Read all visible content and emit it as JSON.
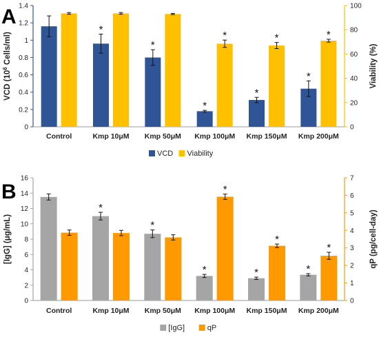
{
  "chart_data": [
    {
      "type": "bar",
      "panel_label": "A",
      "categories": [
        "Control",
        "Kmp 10μM",
        "Kmp 50μM",
        "Kmp 100μM",
        "Kmp 150μM",
        "Kmp 200μM"
      ],
      "series": [
        {
          "name": "VCD",
          "axis": "left",
          "color": "#2F5597",
          "values": [
            1.16,
            0.96,
            0.8,
            0.18,
            0.31,
            0.44
          ],
          "errors": [
            0.12,
            0.11,
            0.09,
            0.01,
            0.03,
            0.09
          ],
          "significant": [
            false,
            true,
            true,
            true,
            true,
            true
          ]
        },
        {
          "name": "Viability",
          "axis": "right",
          "color": "#FFC000",
          "values": [
            93.5,
            93.5,
            93.0,
            68.5,
            67.0,
            71.0
          ],
          "errors": [
            0.7,
            0.7,
            0.5,
            3.0,
            2.5,
            1.2
          ],
          "significant": [
            false,
            false,
            false,
            true,
            true,
            true
          ]
        }
      ],
      "ylabel": "VCD (10",
      "ylabel_sup": "6",
      "ylabel_end": " Cells/ml)",
      "ylim": [
        0,
        1.4
      ],
      "yticks": [
        0,
        0.2,
        0.4,
        0.6,
        0.8,
        1,
        1.2,
        1.4
      ],
      "y2label": "Viability (%)",
      "y2lim": [
        0,
        100
      ],
      "y2ticks": [
        0,
        20,
        40,
        60,
        80,
        100
      ],
      "significance_marker": "*",
      "legend_position": "bottom-center",
      "grid": false
    },
    {
      "type": "bar",
      "panel_label": "B",
      "categories": [
        "Control",
        "Kmp 10μM",
        "Kmp 50μM",
        "Kmp 100μM",
        "Kmp 150μM",
        "Kmp 200μM"
      ],
      "series": [
        {
          "name": "[IgG]",
          "axis": "left",
          "color": "#A5A5A5",
          "values": [
            13.5,
            11.0,
            8.7,
            3.2,
            2.9,
            3.35
          ],
          "errors": [
            0.4,
            0.5,
            0.5,
            0.2,
            0.15,
            0.15
          ],
          "significant": [
            false,
            true,
            true,
            true,
            true,
            true
          ]
        },
        {
          "name": "qP",
          "axis": "right",
          "color": "#FF9900",
          "values": [
            3.87,
            3.85,
            3.6,
            5.92,
            3.12,
            2.55
          ],
          "errors": [
            0.15,
            0.15,
            0.15,
            0.15,
            0.1,
            0.2
          ],
          "significant": [
            false,
            false,
            false,
            true,
            true,
            true
          ]
        }
      ],
      "ylabel": "[IgG] (μg/mL)",
      "ylim": [
        0,
        16
      ],
      "yticks": [
        0,
        2,
        4,
        6,
        8,
        10,
        12,
        14,
        16
      ],
      "y2label": "qP (pg/cell-day)",
      "y2lim": [
        0,
        7
      ],
      "y2ticks": [
        0,
        1,
        2,
        3,
        4,
        5,
        6,
        7
      ],
      "significance_marker": "*",
      "legend_position": "bottom-center",
      "grid": false
    }
  ]
}
